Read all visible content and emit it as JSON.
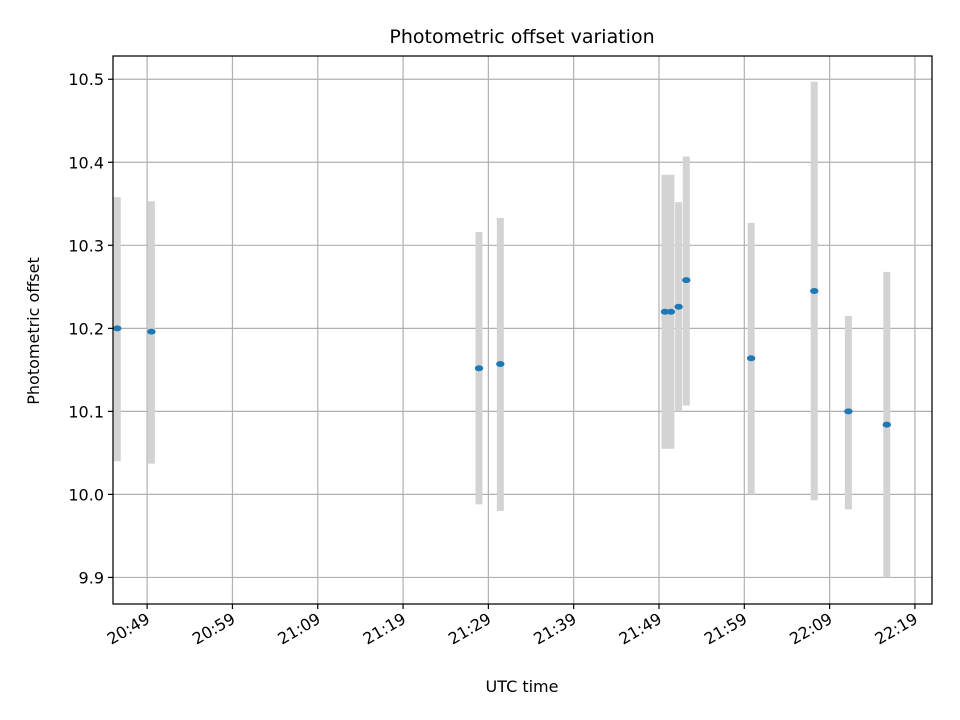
{
  "chart_data": {
    "type": "scatter",
    "title": "Photometric offset variation",
    "xlabel": "UTC time",
    "ylabel": "Photometric offset",
    "x_tick_labels": [
      "20:49",
      "20:59",
      "21:09",
      "21:19",
      "21:29",
      "21:39",
      "21:49",
      "21:59",
      "22:09",
      "22:19"
    ],
    "y_tick_labels": [
      "9.9",
      "10.0",
      "10.1",
      "10.2",
      "10.3",
      "10.4",
      "10.5"
    ],
    "xlim": [
      "20:45",
      "22:21"
    ],
    "ylim": [
      9.868,
      10.528
    ],
    "grid": true,
    "point_color": "#1f77b4",
    "errorbar_color": "#d3d3d3",
    "points": [
      {
        "x": "20:45.5",
        "y": 10.2,
        "ylow": 10.04,
        "yhigh": 10.358
      },
      {
        "x": "20:49.5",
        "y": 10.196,
        "ylow": 10.037,
        "yhigh": 10.353
      },
      {
        "x": "21:27.9",
        "y": 10.152,
        "ylow": 9.988,
        "yhigh": 10.316
      },
      {
        "x": "21:30.4",
        "y": 10.157,
        "ylow": 9.98,
        "yhigh": 10.333
      },
      {
        "x": "21:49.7",
        "y": 10.22,
        "ylow": 10.055,
        "yhigh": 10.385
      },
      {
        "x": "21:50.4",
        "y": 10.22,
        "ylow": 10.055,
        "yhigh": 10.385
      },
      {
        "x": "21:51.3",
        "y": 10.226,
        "ylow": 10.1,
        "yhigh": 10.352
      },
      {
        "x": "21:52.2",
        "y": 10.258,
        "ylow": 10.107,
        "yhigh": 10.407
      },
      {
        "x": "21:59.8",
        "y": 10.164,
        "ylow": 10.0,
        "yhigh": 10.327
      },
      {
        "x": "22:07.2",
        "y": 10.245,
        "ylow": 9.993,
        "yhigh": 10.497
      },
      {
        "x": "22:11.2",
        "y": 10.1,
        "ylow": 9.982,
        "yhigh": 10.215
      },
      {
        "x": "22:15.7",
        "y": 10.084,
        "ylow": 9.9,
        "yhigh": 10.268
      }
    ]
  }
}
